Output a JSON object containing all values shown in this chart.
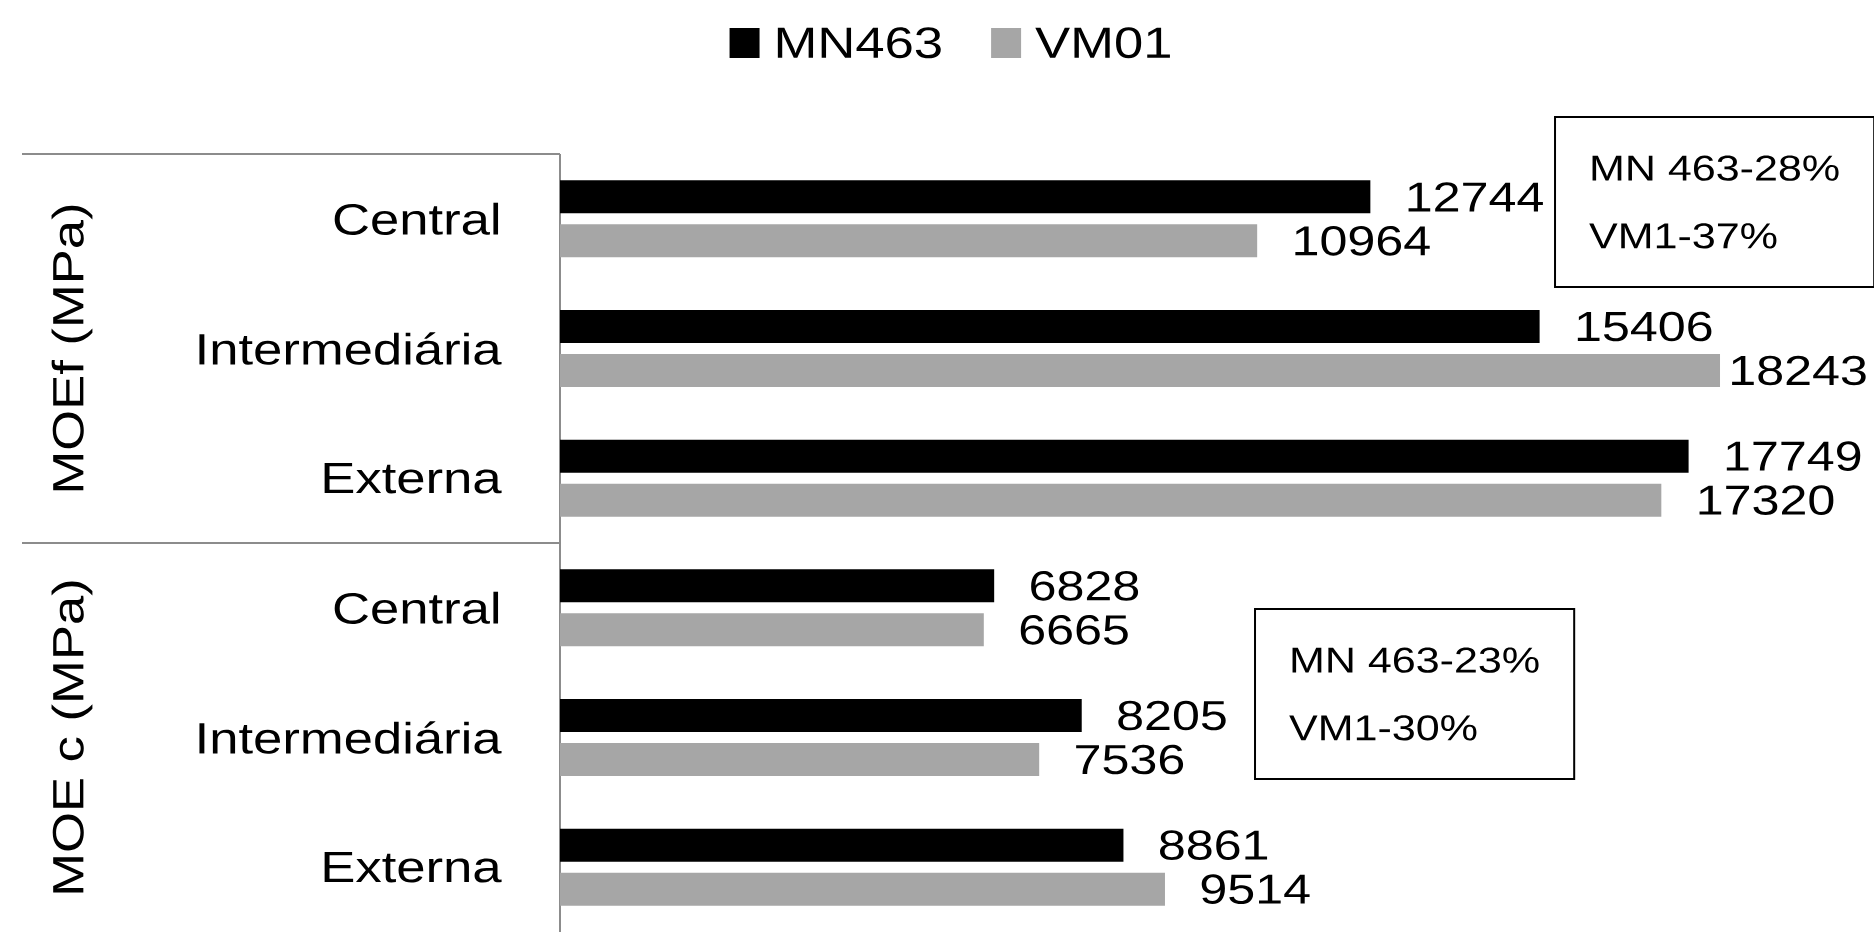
{
  "chart_data": [
    {
      "type": "bar",
      "orientation": "horizontal",
      "ylabel": "MOEf (MPa)",
      "categories": [
        "Central",
        "Intermediária",
        "Externa"
      ],
      "series": [
        {
          "name": "MN463",
          "color": "#000000",
          "values": [
            12744,
            15406,
            17749
          ]
        },
        {
          "name": "VM01",
          "color": "#a6a6a6",
          "values": [
            10964,
            18243,
            17320
          ]
        }
      ],
      "tick_labels": "y",
      "data_labels": true,
      "legend": "top",
      "annotations": [
        "MN 463-28%",
        "VM1-37%"
      ]
    },
    {
      "type": "bar",
      "orientation": "horizontal",
      "ylabel": "MOE c (MPa)",
      "categories": [
        "Central",
        "Intermediária",
        "Externa"
      ],
      "series": [
        {
          "color": "#000000",
          "values": [
            6828,
            8205,
            8861
          ]
        },
        {
          "color": "#a6a6a6",
          "values": [
            6665,
            7536,
            9514
          ]
        }
      ],
      "tick_labels": "y",
      "data_labels": true,
      "annotations": [
        "MN 463-23%",
        "VM1-30%"
      ]
    }
  ]
}
